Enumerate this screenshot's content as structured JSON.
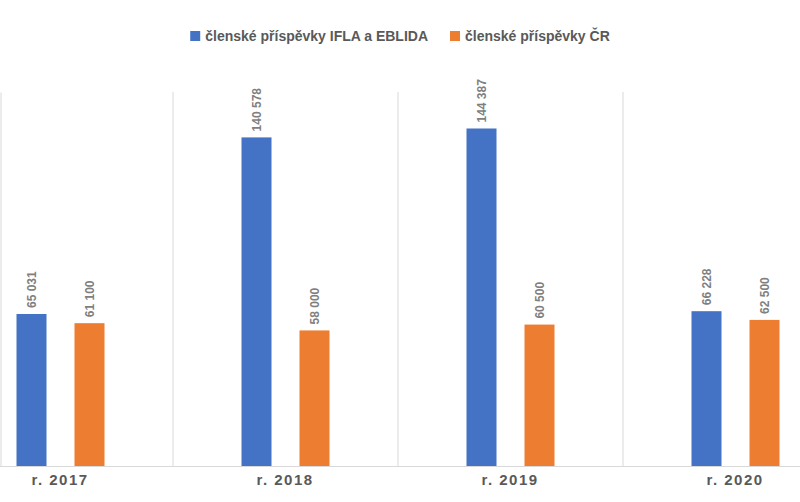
{
  "chart_data": {
    "type": "bar",
    "categories": [
      "r. 2017",
      "r. 2018",
      "r. 2019",
      "r. 2020"
    ],
    "series": [
      {
        "name": "členské příspěvky IFLA a EBLIDA",
        "color": "#4472c4",
        "values": [
          65031,
          140578,
          144387,
          66228
        ],
        "value_labels": [
          "65 031",
          "140 578",
          "144 387",
          "66 228"
        ]
      },
      {
        "name": "členské příspěvky ČR",
        "color": "#ed7d31",
        "values": [
          61100,
          58000,
          60500,
          62500
        ],
        "value_labels": [
          "61 100",
          "58 000",
          "60 500",
          "62 500"
        ]
      }
    ],
    "ylim": [
      0,
      160000
    ],
    "yticks": [],
    "grid": false,
    "legend": "top",
    "data_labels": true,
    "tick_labels": "x"
  }
}
